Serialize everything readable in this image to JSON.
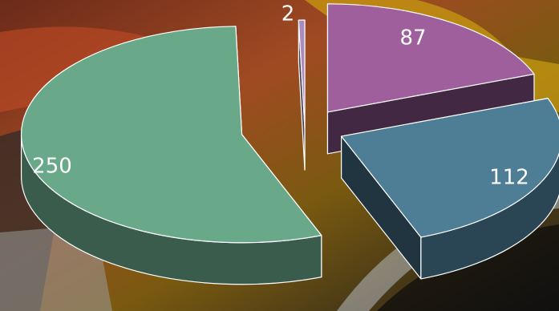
{
  "chart_data": {
    "type": "pie",
    "style": "3d-exploded",
    "title": "",
    "legend": "none",
    "slices": [
      {
        "value": 87,
        "color": "#9e5f9c"
      },
      {
        "value": 112,
        "color": "#4d7e96"
      },
      {
        "value": 250,
        "color": "#6aa88a"
      },
      {
        "value": 2,
        "color": "#a98bbf"
      }
    ],
    "data_labels": [
      "87",
      "112",
      "250",
      "2"
    ]
  }
}
